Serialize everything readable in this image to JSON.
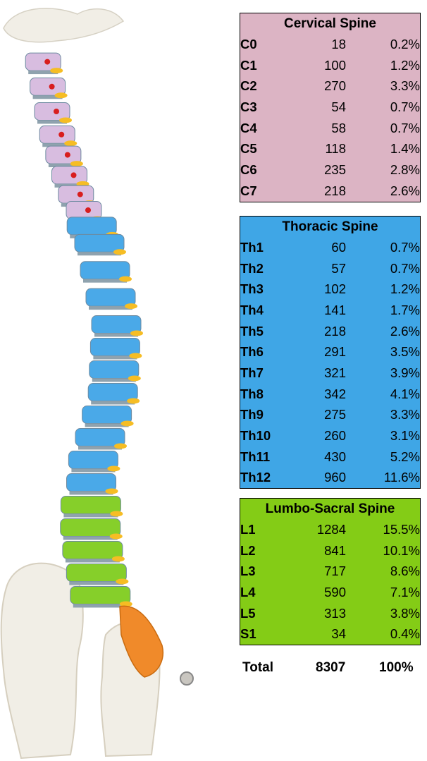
{
  "sections": [
    {
      "title": "Cervical Spine",
      "color": "#dcb4c4",
      "rows": [
        {
          "level": "C0",
          "count": "18",
          "percent": "0.2%"
        },
        {
          "level": "C1",
          "count": "100",
          "percent": "1.2%"
        },
        {
          "level": "C2",
          "count": "270",
          "percent": "3.3%"
        },
        {
          "level": "C3",
          "count": "54",
          "percent": "0.7%"
        },
        {
          "level": "C4",
          "count": "58",
          "percent": "0.7%"
        },
        {
          "level": "C5",
          "count": "118",
          "percent": "1.4%"
        },
        {
          "level": "C6",
          "count": "235",
          "percent": "2.8%"
        },
        {
          "level": "C7",
          "count": "218",
          "percent": "2.6%"
        }
      ]
    },
    {
      "title": "Thoracic Spine",
      "color": "#3fa6e6",
      "rows": [
        {
          "level": "Th1",
          "count": "60",
          "percent": "0.7%"
        },
        {
          "level": "Th2",
          "count": "57",
          "percent": "0.7%"
        },
        {
          "level": "Th3",
          "count": "102",
          "percent": "1.2%"
        },
        {
          "level": "Th4",
          "count": "141",
          "percent": "1.7%"
        },
        {
          "level": "Th5",
          "count": "218",
          "percent": "2.6%"
        },
        {
          "level": "Th6",
          "count": "291",
          "percent": "3.5%"
        },
        {
          "level": "Th7",
          "count": "321",
          "percent": "3.9%"
        },
        {
          "level": "Th8",
          "count": "342",
          "percent": "4.1%"
        },
        {
          "level": "Th9",
          "count": "275",
          "percent": "3.3%"
        },
        {
          "level": "Th10",
          "count": "260",
          "percent": "3.1%"
        },
        {
          "level": "Th11",
          "count": "430",
          "percent": "5.2%"
        },
        {
          "level": "Th12",
          "count": "960",
          "percent": "11.6%"
        }
      ]
    },
    {
      "title": "Lumbo-Sacral Spine",
      "color": "#84cc16",
      "rows": [
        {
          "level": "L1",
          "count": "1284",
          "percent": "15.5%"
        },
        {
          "level": "L2",
          "count": "841",
          "percent": "10.1%"
        },
        {
          "level": "L3",
          "count": "717",
          "percent": "8.6%"
        },
        {
          "level": "L4",
          "count": "590",
          "percent": "7.1%"
        },
        {
          "level": "L5",
          "count": "313",
          "percent": "3.8%"
        },
        {
          "level": "S1",
          "count": "34",
          "percent": "0.4%"
        }
      ]
    }
  ],
  "total": {
    "label": "Total",
    "count": "8307",
    "percent": "100%"
  },
  "figure": {
    "cervical_color": "#d8bde0",
    "thoracic_color": "#4aa9e8",
    "lumbar_color": "#86cf2a",
    "sacral_color": "#f08a2a",
    "bone_color": "#f1eee6",
    "nerve_color": "#f6bd24",
    "artery_color": "#d81e1e"
  }
}
